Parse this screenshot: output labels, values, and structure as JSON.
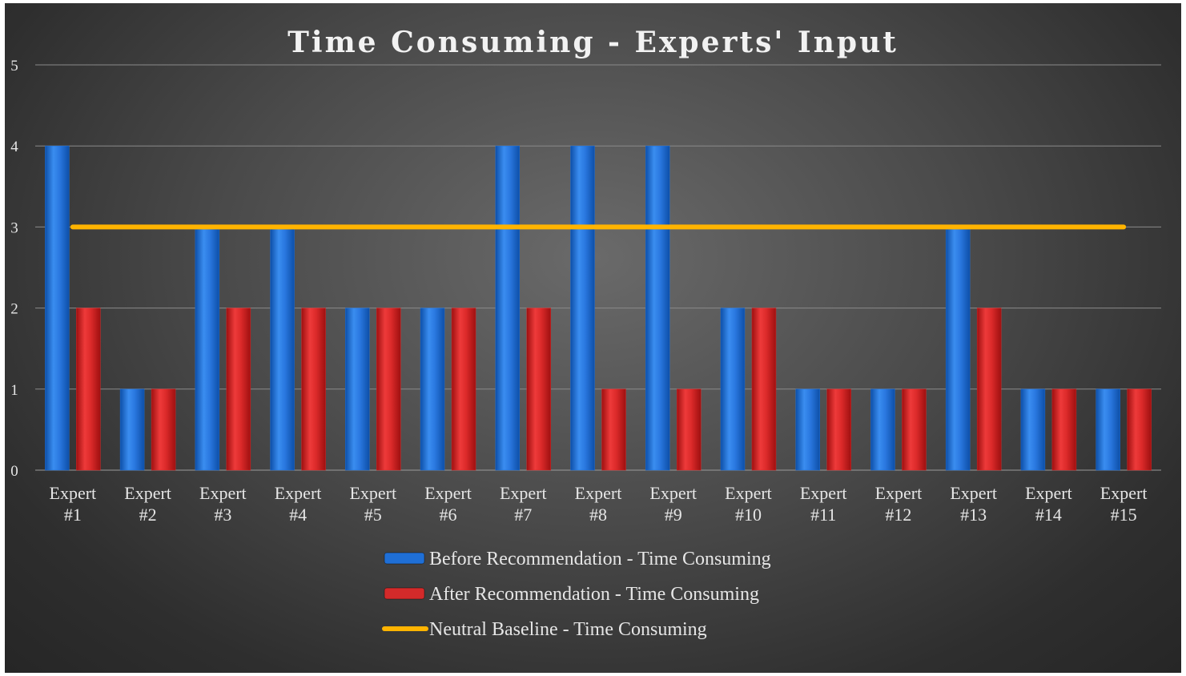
{
  "chart_data": {
    "type": "bar",
    "title": "Time Consuming - Experts' Input",
    "xlabel": "",
    "ylabel": "",
    "ylim": [
      0,
      5
    ],
    "yticks": [
      0,
      1,
      2,
      3,
      4,
      5
    ],
    "grid": true,
    "legend_position": "bottom",
    "categories": [
      [
        "Expert",
        "#1"
      ],
      [
        "Expert",
        "#2"
      ],
      [
        "Expert",
        "#3"
      ],
      [
        "Expert",
        "#4"
      ],
      [
        "Expert",
        "#5"
      ],
      [
        "Expert",
        "#6"
      ],
      [
        "Expert",
        "#7"
      ],
      [
        "Expert",
        "#8"
      ],
      [
        "Expert",
        "#9"
      ],
      [
        "Expert",
        "#10"
      ],
      [
        "Expert",
        "#11"
      ],
      [
        "Expert",
        "#12"
      ],
      [
        "Expert",
        "#13"
      ],
      [
        "Expert",
        "#14"
      ],
      [
        "Expert",
        "#15"
      ]
    ],
    "series": [
      {
        "name": "Before Recommendation - Time Consuming",
        "type": "bar",
        "color": "#1f6fd6",
        "values": [
          4,
          1,
          3,
          3,
          2,
          2,
          4,
          4,
          4,
          2,
          1,
          1,
          3,
          1,
          1
        ]
      },
      {
        "name": "After Recommendation - Time Consuming",
        "type": "bar",
        "color": "#d42a2a",
        "values": [
          2,
          1,
          2,
          2,
          2,
          2,
          2,
          1,
          1,
          2,
          1,
          1,
          2,
          1,
          1
        ]
      },
      {
        "name": "Neutral Baseline - Time Consuming",
        "type": "line",
        "color": "#ffb400",
        "values": [
          3,
          3,
          3,
          3,
          3,
          3,
          3,
          3,
          3,
          3,
          3,
          3,
          3,
          3,
          3
        ]
      }
    ]
  }
}
